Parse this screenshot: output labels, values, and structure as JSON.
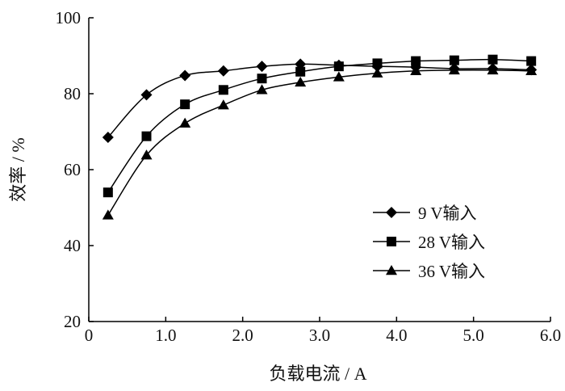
{
  "chart_data": {
    "type": "line",
    "xlabel": "负载电流 / A",
    "ylabel": "效率 / %",
    "xlim": [
      0,
      6.0
    ],
    "ylim": [
      20,
      100
    ],
    "x_ticks": [
      "0",
      "1.0",
      "2.0",
      "3.0",
      "4.0",
      "5.0",
      "6.0"
    ],
    "y_ticks": [
      "20",
      "40",
      "60",
      "80",
      "100"
    ],
    "grid": false,
    "legend_position": "right",
    "x": [
      0.25,
      0.75,
      1.25,
      1.75,
      2.25,
      2.75,
      3.25,
      3.75,
      4.25,
      4.75,
      5.25,
      5.75
    ],
    "series": [
      {
        "name": "9 V输入",
        "marker": "diamond",
        "values": [
          68.5,
          79.7,
          84.8,
          86.0,
          87.2,
          87.8,
          87.5,
          87.2,
          87.0,
          86.6,
          86.6,
          86.3
        ]
      },
      {
        "name": "28 V输入",
        "marker": "square",
        "values": [
          54.0,
          68.8,
          77.2,
          81.0,
          84.0,
          85.8,
          87.2,
          88.0,
          88.6,
          88.8,
          89.0,
          88.6
        ]
      },
      {
        "name": "36 V输入",
        "marker": "triangle",
        "values": [
          48.0,
          63.8,
          72.2,
          77.0,
          81.0,
          83.0,
          84.4,
          85.4,
          86.0,
          86.2,
          86.2,
          86.0
        ]
      }
    ]
  }
}
